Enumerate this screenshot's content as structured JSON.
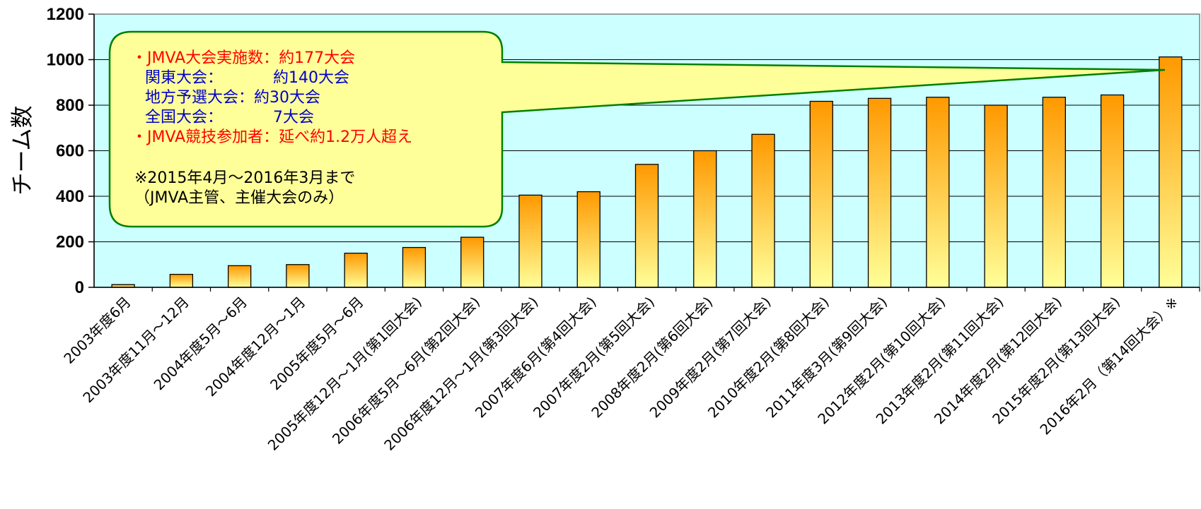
{
  "chart_data": {
    "type": "bar",
    "ylabel": "チーム数",
    "ylim": [
      0,
      1200
    ],
    "yticks": [
      0,
      200,
      400,
      600,
      800,
      1000,
      1200
    ],
    "grid": true,
    "categories": [
      "2003年度6月",
      "2003年度11月～12月",
      "2004年度5月～6月",
      "2004年度12月～1月",
      "2005年度5月～6月",
      "2005年度12月～1月(第1回大会)",
      "2006年度5月～6月(第2回大会)",
      "2006年度12月～1月(第3回大会)",
      "2007年度6月(第4回大会)",
      "2007年度2月(第5回大会)",
      "2008年度2月(第6回大会)",
      "2009年度2月(第7回大会)",
      "2010年度2月(第8回大会)",
      "2011年度3月(第9回大会)",
      "2012年度2月(第10回大会)",
      "2013年度2月(第11回大会)",
      "2014年度2月(第12回大会)",
      "2015年度2月(第13回大会)",
      "2016年2月（第14回大会）※"
    ],
    "values": [
      12,
      57,
      95,
      100,
      150,
      175,
      220,
      405,
      420,
      540,
      600,
      672,
      817,
      830,
      835,
      800,
      835,
      845,
      1012
    ],
    "colors": {
      "plot_bg": "#ccffff",
      "bar_top": "#ff9900",
      "bar_bottom": "#ffff99",
      "bar_stroke": "#000000",
      "callout_fill": "#ffff99",
      "callout_stroke": "#008000",
      "text_red": "#ff0000",
      "text_blue": "#0000cc",
      "text_black": "#000000"
    }
  },
  "callout": {
    "lines": [
      {
        "text": "・JMVA大会実施数：約177大会",
        "color": "red"
      },
      {
        "text": "関東大会：",
        "value": "約140大会",
        "color": "blue"
      },
      {
        "text": "地方予選大会：約30大会",
        "color": "blue"
      },
      {
        "text": "全国大会：",
        "value": "7大会",
        "color": "blue"
      },
      {
        "text": "・JMVA競技参加者：延べ約1.2万人超え",
        "color": "red"
      },
      {
        "text": "※2015年4月～2016年3月まで",
        "color": "black"
      },
      {
        "text": "（JMVA主管、主催大会のみ）",
        "color": "black"
      }
    ]
  }
}
